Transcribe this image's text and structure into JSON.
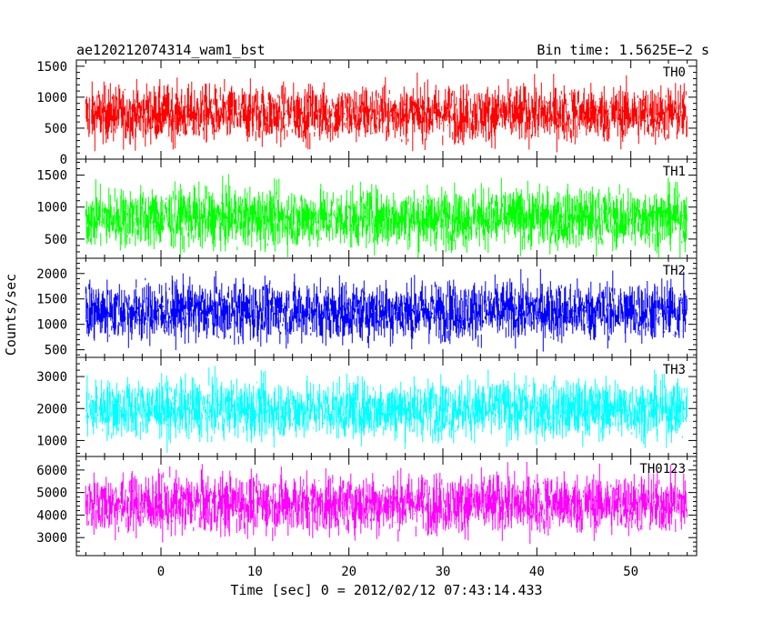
{
  "chart_data": {
    "type": "line",
    "title_left": "ae120212074314_wam1_bst",
    "title_right": "Bin time: 1.5625E−2 s",
    "xlabel": "Time [sec] 0 = 2012/02/12 07:43:14.433",
    "ylabel": "Counts/sec",
    "xlim": [
      -9,
      57
    ],
    "x_ticks": [
      0,
      10,
      20,
      30,
      40,
      50
    ],
    "x_tick_labels": [
      "0",
      "10",
      "20",
      "30",
      "40",
      "50"
    ],
    "grid": false,
    "panels": [
      {
        "name": "TH0",
        "color": "#ff0000",
        "ylim": [
          0,
          1600
        ],
        "yticks": [
          0,
          500,
          1000,
          1500
        ],
        "ytick_labels": [
          "0",
          "500",
          "1000",
          "1500"
        ],
        "mean": 730,
        "low": 80,
        "high": 1560
      },
      {
        "name": "TH1",
        "color": "#00ff00",
        "ylim": [
          200,
          1750
        ],
        "yticks": [
          500,
          1000,
          1500
        ],
        "ytick_labels": [
          "500",
          "1000",
          "1500"
        ],
        "mean": 830,
        "low": 230,
        "high": 1720
      },
      {
        "name": "TH2",
        "color": "#0000ff",
        "ylim": [
          350,
          2300
        ],
        "yticks": [
          500,
          1000,
          1500,
          2000
        ],
        "ytick_labels": [
          "500",
          "1000",
          "1500",
          "2000"
        ],
        "mean": 1260,
        "low": 380,
        "high": 2280
      },
      {
        "name": "TH3",
        "color": "#00ffff",
        "ylim": [
          500,
          3600
        ],
        "yticks": [
          1000,
          2000,
          3000
        ],
        "ytick_labels": [
          "1000",
          "2000",
          "3000"
        ],
        "mean": 1980,
        "low": 620,
        "high": 3550
      },
      {
        "name": "TH0123",
        "color": "#ff00ff",
        "ylim": [
          2200,
          6600
        ],
        "yticks": [
          3000,
          4000,
          5000,
          6000
        ],
        "ytick_labels": [
          "3000",
          "4000",
          "5000",
          "6000"
        ],
        "mean": 4500,
        "low": 2300,
        "high": 6550
      }
    ],
    "data_x_range": [
      -8,
      56
    ],
    "bin_time": 0.015625
  }
}
